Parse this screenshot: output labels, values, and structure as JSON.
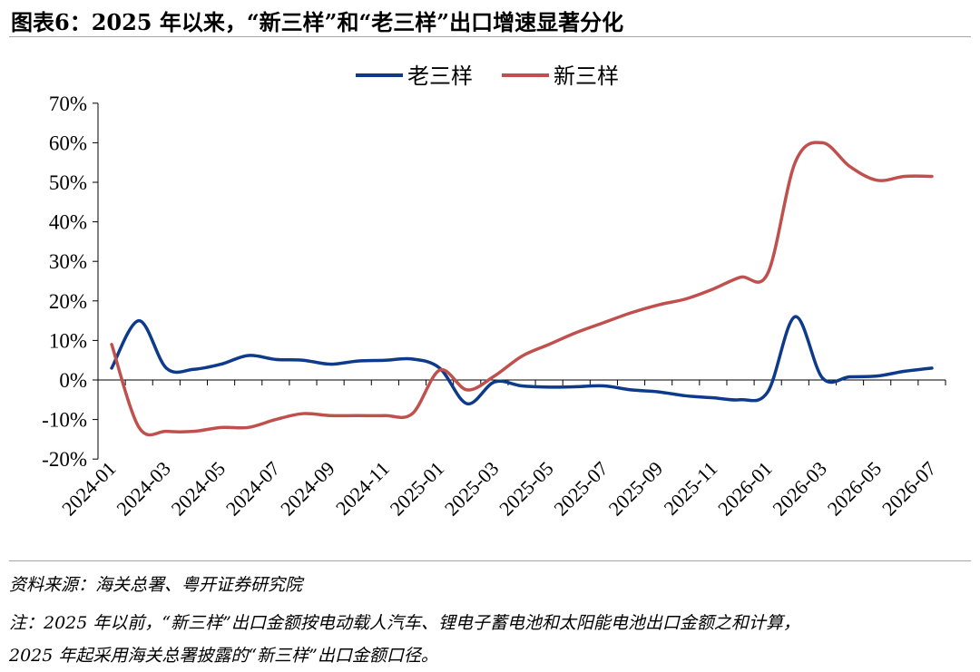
{
  "title": "图表6：2025 年以来，“新三样”和“老三样”出口增速显著分化",
  "source_note": "资料来源：海关总署、粤开证券研究院",
  "footnote_line1": "注：2025 年以前，“新三样”出口金额按电动载人汽车、锂电子蓄电池和太阳能电池出口金额之和计算，",
  "footnote_line2": "2025 年起采用海关总署披露的“新三样”出口金额口径。",
  "chart_data": {
    "type": "line",
    "x": [
      "2024-01",
      "2024-02",
      "2024-03",
      "2024-04",
      "2024-05",
      "2024-06",
      "2024-07",
      "2024-08",
      "2024-09",
      "2024-10",
      "2024-11",
      "2024-12",
      "2025-01",
      "2025-02",
      "2025-03",
      "2025-04",
      "2025-05",
      "2025-06",
      "2025-07",
      "2025-08",
      "2025-09",
      "2025-10",
      "2025-11",
      "2025-12",
      "2026-01",
      "2026-02",
      "2026-03",
      "2026-04",
      "2026-05",
      "2026-06",
      "2026-07"
    ],
    "tick_labels": [
      "2024-01",
      "2024-03",
      "2024-05",
      "2024-07",
      "2024-09",
      "2024-11",
      "2025-01",
      "2025-03",
      "2025-05",
      "2025-07",
      "2025-09",
      "2025-11",
      "2026-01",
      "2026-03",
      "2026-05",
      "2026-07"
    ],
    "ylim": [
      -20,
      70
    ],
    "yticks": [
      -20,
      -10,
      0,
      10,
      20,
      30,
      40,
      50,
      60,
      70
    ],
    "ytick_suffix": "%",
    "legend_position": "top-center",
    "grid": false,
    "series": [
      {
        "name": "老三样",
        "color": "#0d3a8a",
        "values": [
          3,
          15,
          3,
          2.7,
          4,
          6.2,
          5.2,
          5,
          4,
          4.8,
          5,
          5.3,
          3,
          -6,
          -0.5,
          -1.5,
          -1.8,
          -1.7,
          -1.5,
          -2.5,
          -3,
          -4,
          -4.5,
          -5,
          -3,
          16,
          0.5,
          0.8,
          1,
          2.2,
          3
        ]
      },
      {
        "name": "新三样",
        "color": "#c0504d",
        "values": [
          9,
          -12,
          -13,
          -13,
          -12,
          -12,
          -10,
          -8.5,
          -9,
          -9,
          -9,
          -8.5,
          2.5,
          -2.5,
          1,
          6,
          9,
          12,
          14.5,
          17,
          19,
          20.5,
          23,
          26,
          27,
          55,
          60,
          54,
          50.5,
          51.5,
          51.5
        ]
      }
    ]
  }
}
